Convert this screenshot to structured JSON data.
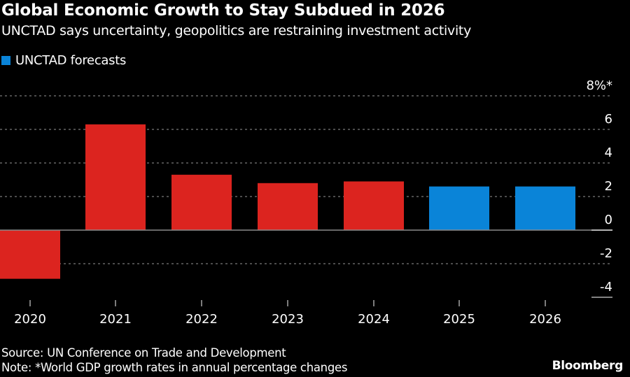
{
  "title": "Global Economic Growth to Stay Subdued in 2026",
  "subtitle": "UNCTAD says uncertainty, geopolitics are restraining investment activity",
  "legend": {
    "label": "UNCTAD forecasts",
    "color": "#0a84d8"
  },
  "footer": {
    "source": "Source: UN Conference on Trade and Development",
    "note": "Note: *World GDP growth rates in annual percentage changes",
    "brand": "Bloomberg"
  },
  "colors": {
    "actual": "#dc241f",
    "forecast": "#0a84d8",
    "grid": "#7a7a7a",
    "text": "#ffffff"
  },
  "chart_data": {
    "type": "bar",
    "title": "Global Economic Growth to Stay Subdued in 2026",
    "xlabel": "",
    "ylabel": "World GDP growth (%)",
    "categories": [
      "2020",
      "2021",
      "2022",
      "2023",
      "2024",
      "2025",
      "2026"
    ],
    "values": [
      -2.9,
      6.3,
      3.3,
      2.8,
      2.9,
      2.6,
      2.6
    ],
    "forecast": [
      false,
      false,
      false,
      false,
      false,
      true,
      true
    ],
    "ylim": [
      -4,
      8
    ],
    "yticks": [
      8,
      6,
      4,
      2,
      0,
      -2,
      -4
    ],
    "ytick_labels": [
      "8%*",
      "6",
      "4",
      "2",
      "0",
      "-2",
      "-4"
    ],
    "grid": true,
    "axis_position": "right",
    "legend": [
      {
        "name": "UNCTAD forecasts",
        "color": "#0a84d8"
      }
    ]
  }
}
